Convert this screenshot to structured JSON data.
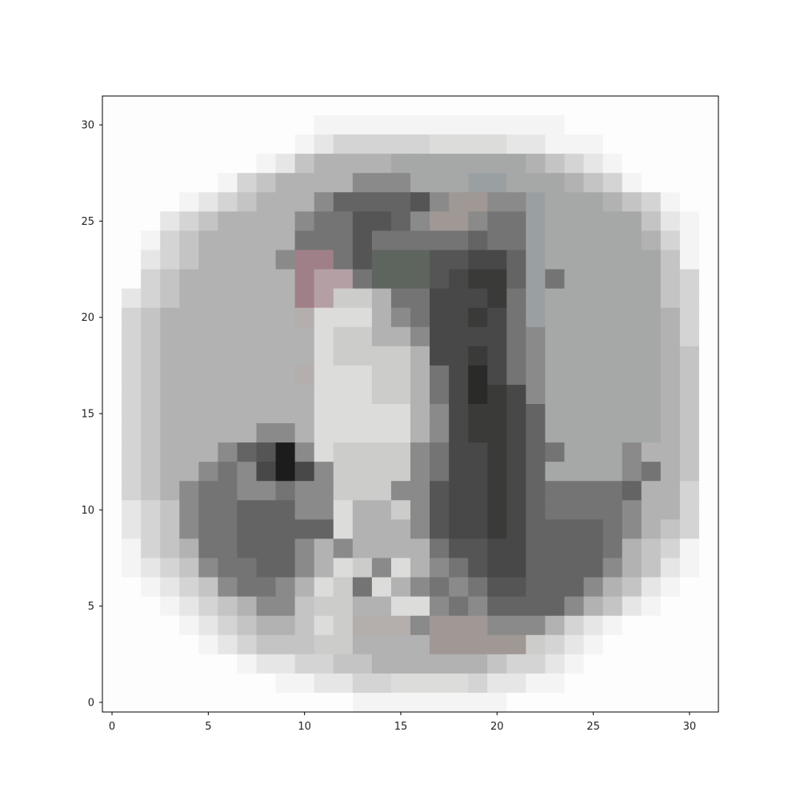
{
  "chart_data": {
    "type": "heatmap",
    "title": "",
    "xlabel": "",
    "ylabel": "",
    "rows": 32,
    "cols": 32,
    "xlim": [
      -0.5,
      31.5
    ],
    "ylim": [
      31.5,
      -0.5
    ],
    "y_axis_inverted": true,
    "xticks": [
      0,
      5,
      10,
      15,
      20,
      25,
      30
    ],
    "yticks": [
      0,
      5,
      10,
      15,
      20,
      25,
      30
    ],
    "xtick_labels": [
      "0",
      "5",
      "10",
      "15",
      "20",
      "25",
      "30"
    ],
    "ytick_labels": [
      "0",
      "5",
      "10",
      "15",
      "20",
      "25",
      "30"
    ],
    "grid": false,
    "colormap": "RGB image",
    "palette": {
      "W": "#fdfdfd",
      "w": "#f4f4f4",
      "e": "#e6e6e6",
      "d": "#d4d4d4",
      "c": "#c4c4c4",
      "b": "#b2b2b2",
      "a": "#a6a8a8",
      "g": "#9aa0a2",
      "l": "#dcdcda",
      "L": "#ccccca",
      "m": "#8a8a8a",
      "n": "#747474",
      "o": "#646464",
      "p": "#555555",
      "q": "#484848",
      "r": "#3a3a38",
      "s": "#2a2a28",
      "k": "#1c1c1c",
      "u": "#a08088",
      "v": "#b4a0a4",
      "x": "#5e645e",
      "y": "#a09894",
      "z": "#b4aeac"
    },
    "pixels": [
      "WWWWWWWWWWWWWWWWWWWWWWWWWWWWWWWW",
      "WWWWWWWWWWWwwwwwwwwwwwwwWWWWWWWW",
      "WWWWWWWWWWwedddddlllleewwwWWWWWW",
      "WWWWWWWWwecbbbbaaaaaaabcdewWWWWW",
      "WWWWWWwdcbbbbmmmaaaggaaabcdwWWWW",
      "WWWWwedcbbbmoooopmyymmgaaabcdwWW",
      "WWWedcbbbbmnnppomyymnngaaaaacewW",
      "WWwdcbbbbbnnnpnnnnnonngaaaaabdwW",
      "WWedcbbbbmuunpxxxppqqogaaaaaacwW",
      "WWdcbbbbbbuvvnxxxpqrrognaaaaacdW",
      "WedcbbbbbbuvLLbnnqqqrngaaaaaacdW",
      "WdcbbbbbbbzlllbmnqqrqngaaaaaabdW",
      "WdcbbbbbbbblLLbbmqqqqnmaaaaaabdW",
      "WdcbbbbbbbblLLLLbqqrqnmaaaaaabcW",
      "WdcbbbbbbbzlllLLbnqsqnmaaaaaabcW",
      "WdcbbbbbbbblllLLbnqsrqmaaaaaabcW",
      "WdcbbbbbbbblllllbmqrrqoaaaaaabcW",
      "WdcbbbbbmmblllllbmqrrqoaaaaaabcW",
      "WdcbbbmopkmlLLLLmnqqrqonaaambbcW",
      "WdcbbmnmqkqmLLLLmnqqrqoaaaamnbcW",
      "WdcbmnnmmnmmLLLmmpqqrqonnnnobbdW",
      "WedcmnnooommlbbLmpqqrqonnnnmbbdW",
      "WedcmnnooooolbbbmpqqrqoooonmbcdW",
      "WwdcbnnooombmbbbbnppqqoooonbcdwW",
      "WwedcmnnoomblLmlbmnpqqoooombcewW",
      "WWwedcmnnmblLnlbmnmnppooombcewWW",
      "WWWwedcbmmcLLbbllmnmoooombcewWWW",
      "WWWWwedcbbclLzzzmyyymmmbdewWWWWW",
      "WWWWWwedcccLLbbbbyyyyyLdewWWWWWW",
      "WWWWWWWweeddccbbbbbbcddewWWWWWWW",
      "WWWWWWWWWwweeddlllldeewwWWWWWWWW",
      "WWWWWWWWWWWWWwwwwwwwwWWWWWWWWWWW"
    ]
  }
}
